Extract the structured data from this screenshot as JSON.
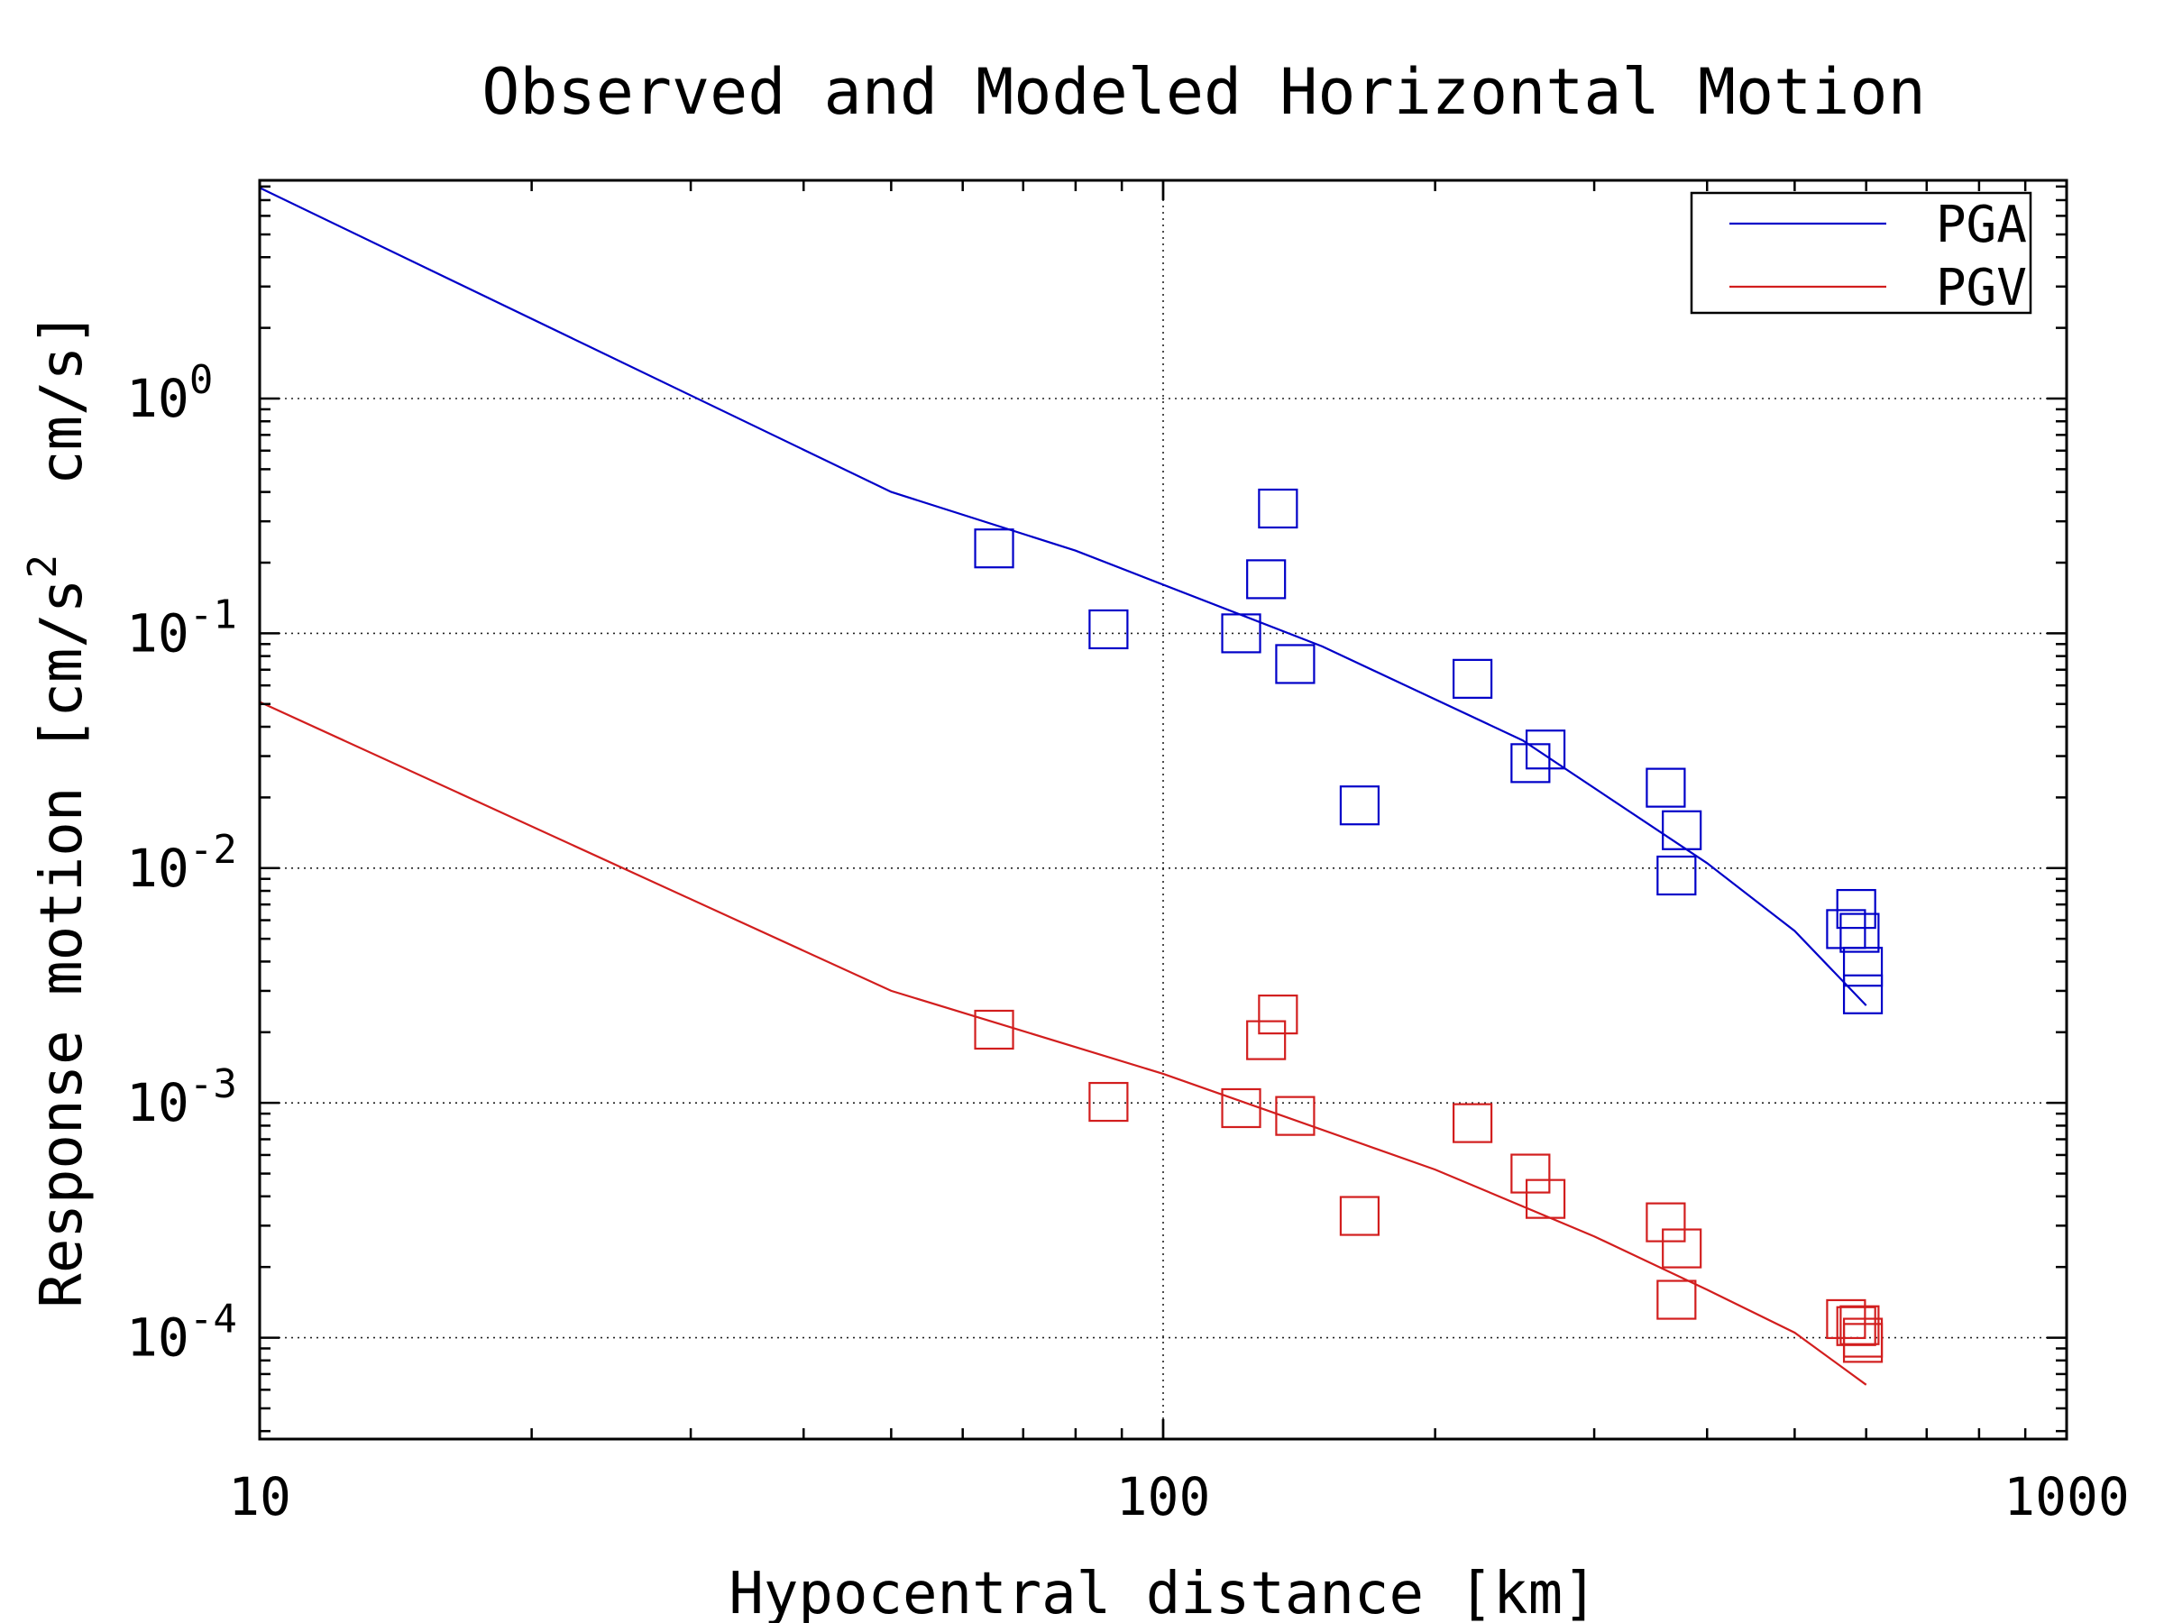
{
  "chart_data": {
    "type": "scatter",
    "title": "Observed and Modeled Horizontal Motion",
    "xlabel": "Hypocentral distance [km]",
    "ylabel": "Response motion [cm/s² cm/s]",
    "ylabel_parts": {
      "pre": "Response motion [cm/s",
      "sup": "2",
      "post": "  cm/s]"
    },
    "x_scale": "log",
    "y_scale": "log",
    "xlim": [
      10,
      1000
    ],
    "ylim": [
      3.7e-05,
      8.5
    ],
    "x_ticks": [
      {
        "value": 10,
        "label": "10"
      },
      {
        "value": 100,
        "label": "100"
      },
      {
        "value": 1000,
        "label": "1000"
      }
    ],
    "y_ticks": [
      {
        "value": 1,
        "base": "10",
        "exp": "0"
      },
      {
        "value": 0.1,
        "base": "10",
        "exp": "-1"
      },
      {
        "value": 0.01,
        "base": "10",
        "exp": "-2"
      },
      {
        "value": 0.001,
        "base": "10",
        "exp": "-3"
      },
      {
        "value": 0.0001,
        "base": "10",
        "exp": "-4"
      }
    ],
    "grid": true,
    "legend_position": "top-right",
    "series": [
      {
        "name": "PGA",
        "color": "#0000c8",
        "model": {
          "x": [
            10,
            50,
            80,
            150,
            250,
            400,
            500,
            600
          ],
          "y": [
            7.9,
            0.4,
            0.225,
            0.088,
            0.035,
            0.0105,
            0.0054,
            0.0026
          ]
        },
        "observed": {
          "x": [
            65,
            87,
            122,
            130,
            134,
            140,
            165,
            220,
            255,
            265,
            360,
            375,
            370,
            570,
            585,
            590,
            595,
            595
          ],
          "y": [
            0.23,
            0.104,
            0.1,
            0.17,
            0.34,
            0.074,
            0.0185,
            0.064,
            0.028,
            0.032,
            0.022,
            0.0145,
            0.0093,
            0.0055,
            0.0067,
            0.0053,
            0.0038,
            0.0029
          ]
        }
      },
      {
        "name": "PGV",
        "color": "#d21e1e",
        "model": {
          "x": [
            10,
            50,
            100,
            200,
            300,
            400,
            500,
            600
          ],
          "y": [
            0.051,
            0.003,
            0.00133,
            0.00052,
            0.00027,
            0.00016,
            0.000105,
            6.3e-05
          ]
        },
        "observed": {
          "x": [
            65,
            87,
            122,
            130,
            134,
            140,
            165,
            220,
            255,
            265,
            360,
            375,
            370,
            570,
            585,
            590,
            595,
            595
          ],
          "y": [
            0.00205,
            0.00101,
            0.00095,
            0.00185,
            0.00238,
            0.00088,
            0.00033,
            0.00082,
            0.0005,
            0.00039,
            0.00031,
            0.00024,
            0.000145,
            0.00012,
            0.000112,
            0.000113,
            0.0001,
            9.5e-05
          ]
        }
      }
    ]
  }
}
